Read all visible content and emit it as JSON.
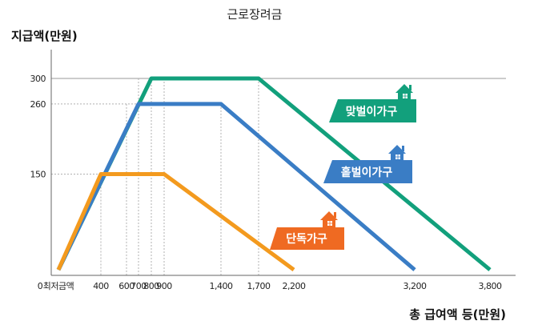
{
  "chart_data": {
    "type": "line",
    "title": "근로장려금",
    "ylabel": "지급액(만원)",
    "xlabel": "총 급여액 등(만원)",
    "x_ticks": [
      {
        "value": 0,
        "label": "0"
      },
      {
        "value": 150,
        "label": "최저금액"
      },
      {
        "value": 400,
        "label": "400"
      },
      {
        "value": 600,
        "label": "600"
      },
      {
        "value": 700,
        "label": "700"
      },
      {
        "value": 800,
        "label": "800"
      },
      {
        "value": 900,
        "label": "900"
      },
      {
        "value": 1400,
        "label": "1,400"
      },
      {
        "value": 1700,
        "label": "1,700"
      },
      {
        "value": 2200,
        "label": "2,200"
      },
      {
        "value": 3200,
        "label": "3,200"
      },
      {
        "value": 3800,
        "label": "3,800"
      }
    ],
    "y_ticks": [
      {
        "value": 150,
        "label": "150"
      },
      {
        "value": 260,
        "label": "260"
      },
      {
        "value": 300,
        "label": "300"
      }
    ],
    "xlim": [
      0,
      3900
    ],
    "ylim": [
      0,
      330
    ],
    "grid": "dashed guide lines at tick values",
    "series": [
      {
        "name": "맞벌이가구",
        "color": "#12a07c",
        "points": [
          [
            150,
            0
          ],
          [
            800,
            300
          ],
          [
            1700,
            300
          ],
          [
            3800,
            0
          ]
        ]
      },
      {
        "name": "홑벌이가구",
        "color": "#3a7dc5",
        "points": [
          [
            150,
            0
          ],
          [
            700,
            260
          ],
          [
            1400,
            260
          ],
          [
            3200,
            0
          ]
        ]
      },
      {
        "name": "단독가구",
        "color": "#f39a1e",
        "points": [
          [
            150,
            0
          ],
          [
            400,
            150
          ],
          [
            900,
            150
          ],
          [
            2200,
            0
          ]
        ]
      }
    ],
    "legend_placement": "labels beside each line"
  }
}
